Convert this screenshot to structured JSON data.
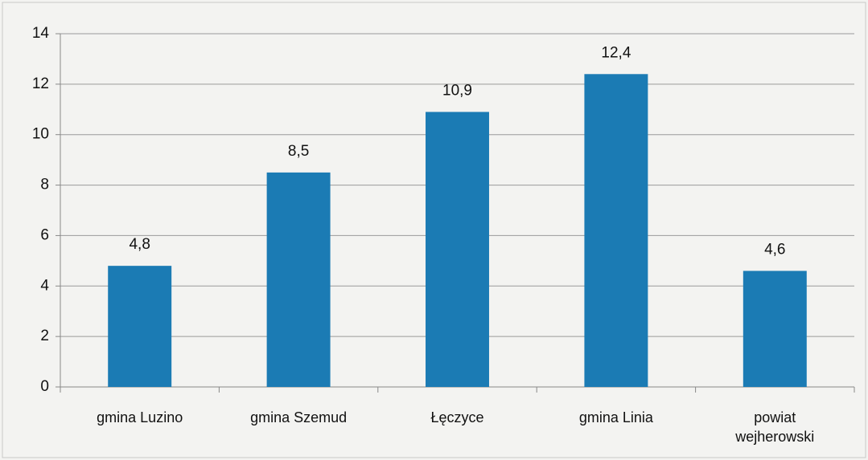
{
  "chart_data": {
    "type": "bar",
    "categories": [
      "gmina Luzino",
      "gmina Szemud",
      "Łęczyce",
      "gmina Linia",
      "powiat wejherowski"
    ],
    "values": [
      4.8,
      8.5,
      10.9,
      12.4,
      4.6
    ],
    "value_labels": [
      "4,8",
      "8,5",
      "10,9",
      "12,4",
      "4,6"
    ],
    "color": "#1b7bb4",
    "ylim": [
      0,
      14
    ],
    "yticks": [
      0,
      2,
      4,
      6,
      8,
      10,
      12,
      14
    ],
    "grid": true
  }
}
